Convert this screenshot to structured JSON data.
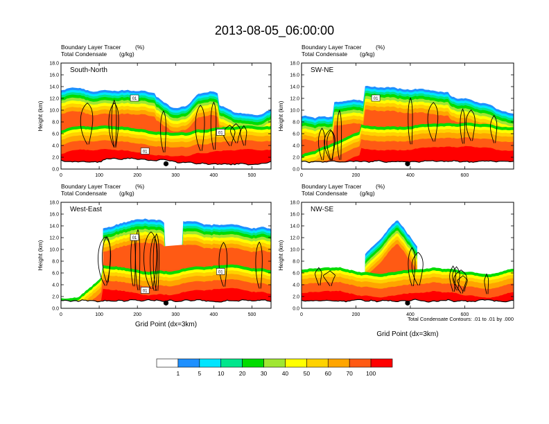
{
  "title": "2013-08-05_06:00:00",
  "colors": {
    "levels": [
      "#ffffff",
      "#1e90ff",
      "#00e5ff",
      "#00e68c",
      "#00dc00",
      "#a0e632",
      "#ffff00",
      "#ffd200",
      "#ffa500",
      "#ff5a14",
      "#ff0000"
    ],
    "contour": "#000000",
    "marker": "#000000"
  },
  "colorbar": {
    "labels": [
      "1",
      "5",
      "10",
      "20",
      "30",
      "40",
      "50",
      "60",
      "70",
      "100"
    ]
  },
  "footnote": "Total Condensate Contours: .01 to .01 by .000",
  "chart_data": [
    {
      "type": "heatmap",
      "panel_label": "South-North",
      "title_left_1": "Boundary Layer Tracer",
      "title_right_1": "(%)",
      "title_left_2": "Total Condensate",
      "title_right_2": "(g/kg)",
      "ylabel": "Height (km)",
      "xlabel": "",
      "ylim": [
        0,
        18
      ],
      "xlim": [
        0,
        550
      ],
      "yticks": [
        "0.0",
        "2.0",
        "4.0",
        "6.0",
        "8.0",
        "10.0",
        "12.0",
        "14.0",
        "16.0",
        "18.0"
      ],
      "xticks": [
        0,
        100,
        200,
        300,
        400,
        500
      ],
      "marker_x": 275,
      "contour_labels": [
        "01",
        "01",
        "01"
      ]
    },
    {
      "type": "heatmap",
      "panel_label": "SW-NE",
      "title_left_1": "Boundary Layer Tracer",
      "title_right_1": "(%)",
      "title_left_2": "Total Condensate",
      "title_right_2": "(g/kg)",
      "ylabel": "Height (km)",
      "xlabel": "",
      "ylim": [
        0,
        18
      ],
      "xlim": [
        0,
        780
      ],
      "yticks": [
        "0.0",
        "2.0",
        "4.0",
        "6.0",
        "8.0",
        "10.0",
        "12.0",
        "14.0",
        "16.0",
        "18.0"
      ],
      "xticks": [
        0,
        200,
        400,
        600
      ],
      "marker_x": 390,
      "contour_labels": [
        "01"
      ]
    },
    {
      "type": "heatmap",
      "panel_label": "West-East",
      "title_left_1": "Boundary Layer Tracer",
      "title_right_1": "(%)",
      "title_left_2": "Total Condensate",
      "title_right_2": "(g/kg)",
      "ylabel": "Height (km)",
      "xlabel": "Grid Point (dx=3km)",
      "ylim": [
        0,
        18
      ],
      "xlim": [
        0,
        550
      ],
      "yticks": [
        "0.0",
        "2.0",
        "4.0",
        "6.0",
        "8.0",
        "10.0",
        "12.0",
        "14.0",
        "16.0",
        "18.0"
      ],
      "xticks": [
        0,
        100,
        200,
        300,
        400,
        500
      ],
      "marker_x": 275,
      "contour_labels": [
        "01",
        "01",
        "01"
      ]
    },
    {
      "type": "heatmap",
      "panel_label": "NW-SE",
      "title_left_1": "Boundary Layer Tracer",
      "title_right_1": "(%)",
      "title_left_2": "Total Condensate",
      "title_right_2": "(g/kg)",
      "ylabel": "Height (km)",
      "xlabel": "Grid Point (dx=3km)",
      "ylim": [
        0,
        18
      ],
      "xlim": [
        0,
        780
      ],
      "yticks": [
        "0.0",
        "2.0",
        "4.0",
        "6.0",
        "8.0",
        "10.0",
        "12.0",
        "14.0",
        "16.0",
        "18.0"
      ],
      "xticks": [
        0,
        200,
        400,
        600
      ],
      "marker_x": 390,
      "contour_labels": []
    }
  ]
}
